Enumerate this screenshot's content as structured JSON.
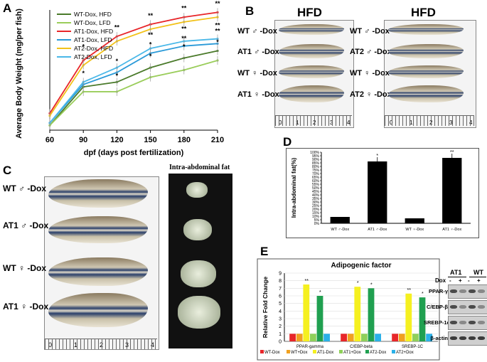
{
  "panels": {
    "A": "A",
    "B": "B",
    "C": "C",
    "D": "D",
    "E": "E"
  },
  "chart_data": [
    {
      "type": "line",
      "panel": "A",
      "title": "",
      "xlabel": "dpf (days post fertilization)",
      "ylabel": "Average Body Weight (mg/per fish)",
      "x": [
        60,
        90,
        120,
        150,
        180,
        210
      ],
      "xlim": [
        60,
        210
      ],
      "grid": false,
      "legend_position": "top-left",
      "series": [
        {
          "name": "WT-Dox, HFD",
          "color": "#4a7a2a",
          "values": [
            null,
            null,
            null,
            null,
            null,
            null
          ]
        },
        {
          "name": "WT-Dox, LFD",
          "color": "#9acd5a",
          "values": [
            null,
            null,
            null,
            null,
            null,
            null
          ]
        },
        {
          "name": "AT1-Dox, HFD",
          "color": "#e8262a",
          "values": [
            null,
            null,
            null,
            null,
            null,
            null
          ]
        },
        {
          "name": "AT1-Dox, LFD",
          "color": "#2a9ad8",
          "values": [
            null,
            null,
            null,
            null,
            null,
            null
          ]
        },
        {
          "name": "AT2-Dox, HFD",
          "color": "#f2c21a",
          "values": [
            null,
            null,
            null,
            null,
            null,
            null
          ]
        },
        {
          "name": "AT2-Dox, LFD",
          "color": "#4ab8e8",
          "values": [
            null,
            null,
            null,
            null,
            null,
            null
          ]
        }
      ],
      "stars": [
        "*",
        "*",
        "**",
        "**",
        "**",
        "**",
        "*",
        "**",
        "**",
        "**",
        "*",
        "**",
        "**",
        "*",
        "*",
        "*",
        "*"
      ]
    },
    {
      "type": "bar",
      "panel": "D",
      "ylabel": "Intra-abdominal fat(%)",
      "ylim": [
        0,
        100
      ],
      "yticks": [
        "0%",
        "5%",
        "10%",
        "15%",
        "20%",
        "25%",
        "30%",
        "35%",
        "40%",
        "45%",
        "50%",
        "55%",
        "60%",
        "65%",
        "70%",
        "75%",
        "80%",
        "85%",
        "90%",
        "95%",
        "100%"
      ],
      "categories": [
        "WT ♂-Dox",
        "AT1 ♂-Dox",
        "WT ♀-Dox",
        "AT1 ♀-Dox"
      ],
      "values": [
        9,
        87,
        7,
        92
      ],
      "stars": [
        "",
        "*",
        "",
        "**"
      ]
    },
    {
      "type": "bar",
      "panel": "E",
      "title": "Adipogenic factor",
      "ylabel": "Relative Fold Change",
      "ylim": [
        0,
        9
      ],
      "yticks": [
        "0",
        "1",
        "2",
        "3",
        "4",
        "5",
        "6",
        "7",
        "8",
        "9"
      ],
      "categories": [
        "PPAR-gamma",
        "C/EBP-beta",
        "SREBP-1C"
      ],
      "series": [
        {
          "name": "WT-Dox",
          "color": "#e8262a",
          "values": [
            1,
            1,
            1
          ]
        },
        {
          "name": "WT+Dox",
          "color": "#f0a020",
          "values": [
            1,
            1,
            1
          ]
        },
        {
          "name": "AT1-Dox",
          "color": "#f5f020",
          "values": [
            7.5,
            7.2,
            6.3
          ]
        },
        {
          "name": "AT1+Dox",
          "color": "#8fd05a",
          "values": [
            1,
            1,
            1
          ]
        },
        {
          "name": "AT2-Dox",
          "color": "#20a050",
          "values": [
            6.0,
            7.0,
            5.8
          ]
        },
        {
          "name": "AT2+Dox",
          "color": "#2ab0e8",
          "values": [
            1,
            1,
            1
          ]
        }
      ],
      "stars": [
        "**",
        "*",
        "*",
        "*",
        "**",
        "*"
      ]
    }
  ],
  "panelB": {
    "left_title": "HFD",
    "right_title": "HFD",
    "left_labels": [
      "WT ♂ -Dox",
      "AT1 ♂ -Dox",
      "WT ♀ -Dox",
      "AT1 ♀ -Dox"
    ],
    "right_labels": [
      "WT ♂ -Dox",
      "AT2 ♂ -Dox",
      "WT ♀ -Dox",
      "AT2 ♀ -Dox"
    ],
    "ruler": [
      "0",
      "1",
      "2",
      "3",
      "4"
    ]
  },
  "panelC": {
    "labels": [
      "WT ♂ -Dox",
      "AT1 ♂ -Dox",
      "WT ♀ -Dox",
      "AT1 ♀ -Dox"
    ],
    "fat_title": "Intra-abdominal fat",
    "ruler": [
      "0",
      "1",
      "2",
      "3",
      "4"
    ]
  },
  "blot": {
    "groups": [
      "AT1",
      "WT"
    ],
    "dox_label": "Dox",
    "dox_marks": [
      "-",
      "+",
      "-",
      "+"
    ],
    "rows": [
      "PPAR-γ",
      "C/EBP-β",
      "SREBP-1c",
      "β-actin"
    ]
  }
}
